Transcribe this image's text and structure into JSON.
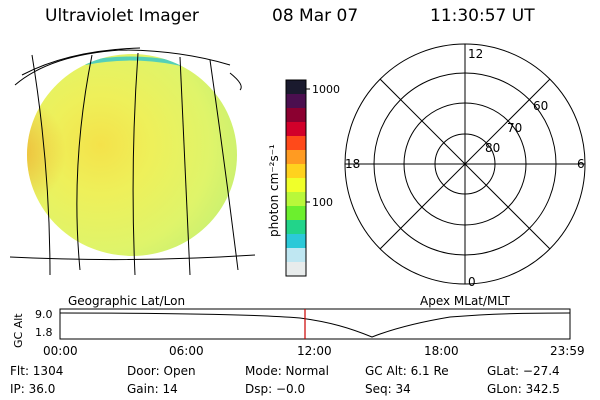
{
  "header": {
    "title": "Ultraviolet Imager",
    "date": "08 Mar 07",
    "time": "11:30:57 UT"
  },
  "image_panel": {
    "caption": "Geographic Lat/Lon"
  },
  "colorbar": {
    "label": "photon cm⁻²s⁻¹",
    "ticks": [
      "1000",
      "100"
    ],
    "colors_top_to_bottom": [
      "#1a1a2e",
      "#4b0f4f",
      "#8b0030",
      "#d2002a",
      "#ff4a1a",
      "#ff9b22",
      "#ffd21e",
      "#f0ff2a",
      "#b9f83a",
      "#6cef2e",
      "#22d48a",
      "#2cc9d8",
      "#bfe7f2",
      "#e8ecec"
    ]
  },
  "polar_panel": {
    "caption": "Apex MLat/MLT",
    "mlt_labels": {
      "top": "12",
      "left": "18",
      "right": "6",
      "bottom": "0"
    },
    "mlat_labels": [
      "60",
      "70",
      "80"
    ]
  },
  "orbit_panel": {
    "ylabel": "GC Alt",
    "yticks": [
      "9.0",
      "1.8"
    ],
    "xticks": [
      "00:00",
      "06:00",
      "12:00",
      "18:00",
      "23:59"
    ],
    "current_time_color": "#cc0000"
  },
  "info": {
    "flt": "Flt: 1304",
    "door": "Door: Open",
    "mode": "Mode: Normal",
    "gcalt": "GC Alt: 6.1 Re",
    "glat": "GLat: −27.4",
    "ip": "IP: 36.0",
    "gain": "Gain: 14",
    "dsp": "Dsp:  −0.0",
    "seq": "Seq: 34",
    "glon": "GLon: 342.5"
  }
}
